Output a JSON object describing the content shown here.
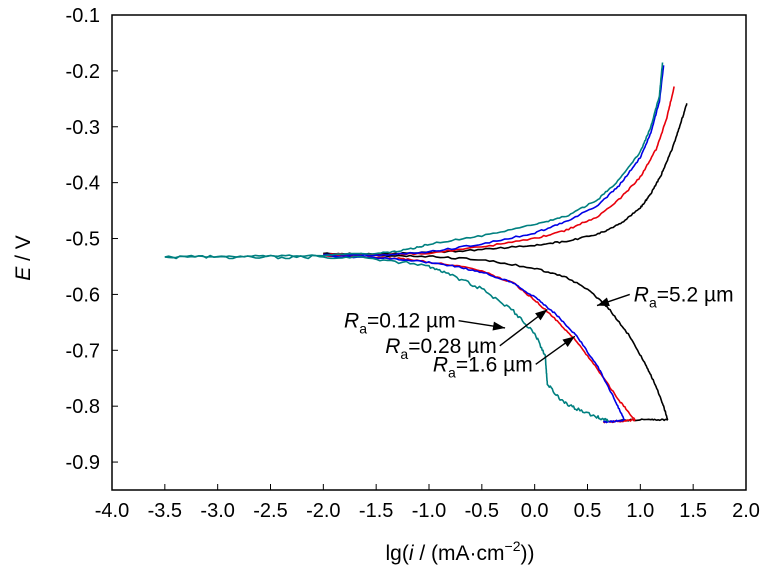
{
  "chart_data": {
    "type": "line",
    "title": "",
    "xlabel": {
      "prefix": "lg(",
      "var": "i",
      "unit_open": " / (mA·cm",
      "sup": "−2",
      "close": "))"
    },
    "ylabel": {
      "var": "E",
      "unit": " / V"
    },
    "xlim": [
      -4.0,
      2.0
    ],
    "ylim": [
      -0.95,
      -0.1
    ],
    "x_ticks": [
      -4.0,
      -3.5,
      -3.0,
      -2.5,
      -2.0,
      -1.5,
      -1.0,
      -0.5,
      0.0,
      0.5,
      1.0,
      1.5,
      2.0
    ],
    "x_tick_labels": [
      "-4.0",
      "-3.5",
      "-3.0",
      "-2.5",
      "-2.0",
      "-1.5",
      "-1.0",
      "-0.5",
      "0.0",
      "0.5",
      "1.0",
      "1.5",
      "2.0"
    ],
    "y_ticks": [
      -0.1,
      -0.2,
      -0.3,
      -0.4,
      -0.5,
      -0.6,
      -0.7,
      -0.8,
      -0.9
    ],
    "y_tick_labels": [
      "-0.1",
      "-0.2",
      "-0.3",
      "-0.4",
      "-0.5",
      "-0.6",
      "-0.7",
      "-0.8",
      "-0.9"
    ],
    "grid": false,
    "series": [
      {
        "color": "#000000",
        "anodic": [
          [
            -2.0,
            -0.527
          ],
          [
            -1.5,
            -0.528
          ],
          [
            -1.0,
            -0.525
          ],
          [
            -0.5,
            -0.52
          ],
          [
            0.0,
            -0.512
          ],
          [
            0.3,
            -0.505
          ],
          [
            0.6,
            -0.492
          ],
          [
            0.8,
            -0.475
          ],
          [
            1.0,
            -0.445
          ],
          [
            1.1,
            -0.42
          ],
          [
            1.2,
            -0.385
          ],
          [
            1.3,
            -0.34
          ],
          [
            1.38,
            -0.295
          ],
          [
            1.44,
            -0.258
          ]
        ],
        "cathodic": [
          [
            -2.0,
            -0.527
          ],
          [
            -1.5,
            -0.53
          ],
          [
            -1.0,
            -0.532
          ],
          [
            -0.5,
            -0.538
          ],
          [
            0.0,
            -0.553
          ],
          [
            0.3,
            -0.57
          ],
          [
            0.5,
            -0.59
          ],
          [
            0.7,
            -0.625
          ],
          [
            0.9,
            -0.675
          ],
          [
            1.05,
            -0.725
          ],
          [
            1.15,
            -0.765
          ],
          [
            1.22,
            -0.8
          ],
          [
            1.26,
            -0.825
          ]
        ],
        "tail": [
          [
            1.26,
            -0.825
          ],
          [
            1.1,
            -0.823
          ],
          [
            0.8,
            -0.826
          ]
        ]
      },
      {
        "color": "#e8000b",
        "anodic": [
          [
            -2.0,
            -0.528
          ],
          [
            -1.5,
            -0.53
          ],
          [
            -1.0,
            -0.526
          ],
          [
            -0.5,
            -0.515
          ],
          [
            0.0,
            -0.5
          ],
          [
            0.3,
            -0.485
          ],
          [
            0.6,
            -0.46
          ],
          [
            0.8,
            -0.43
          ],
          [
            1.0,
            -0.39
          ],
          [
            1.15,
            -0.34
          ],
          [
            1.25,
            -0.285
          ],
          [
            1.32,
            -0.228
          ]
        ],
        "cathodic": [
          [
            -2.0,
            -0.53
          ],
          [
            -1.5,
            -0.533
          ],
          [
            -1.2,
            -0.537
          ],
          [
            -0.8,
            -0.547
          ],
          [
            -0.5,
            -0.558
          ],
          [
            -0.2,
            -0.58
          ],
          [
            0.0,
            -0.61
          ],
          [
            0.2,
            -0.645
          ],
          [
            0.4,
            -0.685
          ],
          [
            0.6,
            -0.735
          ],
          [
            0.8,
            -0.79
          ],
          [
            0.95,
            -0.825
          ]
        ],
        "tail": [
          [
            0.95,
            -0.825
          ],
          [
            0.8,
            -0.827
          ],
          [
            0.65,
            -0.828
          ]
        ]
      },
      {
        "color": "#0000e6",
        "anodic": [
          [
            -2.0,
            -0.529
          ],
          [
            -1.5,
            -0.53
          ],
          [
            -1.0,
            -0.524
          ],
          [
            -0.5,
            -0.51
          ],
          [
            0.0,
            -0.49
          ],
          [
            0.3,
            -0.47
          ],
          [
            0.6,
            -0.44
          ],
          [
            0.8,
            -0.405
          ],
          [
            1.0,
            -0.355
          ],
          [
            1.1,
            -0.31
          ],
          [
            1.18,
            -0.255
          ],
          [
            1.22,
            -0.19
          ]
        ],
        "cathodic": [
          [
            -2.0,
            -0.531
          ],
          [
            -1.5,
            -0.534
          ],
          [
            -1.2,
            -0.538
          ],
          [
            -0.8,
            -0.548
          ],
          [
            -0.5,
            -0.56
          ],
          [
            -0.2,
            -0.58
          ],
          [
            0.0,
            -0.605
          ],
          [
            0.2,
            -0.635
          ],
          [
            0.4,
            -0.675
          ],
          [
            0.6,
            -0.73
          ],
          [
            0.75,
            -0.785
          ],
          [
            0.85,
            -0.825
          ]
        ],
        "tail": [
          [
            0.85,
            -0.825
          ],
          [
            0.7,
            -0.828
          ],
          [
            0.65,
            -0.828
          ]
        ]
      },
      {
        "color": "#008080",
        "anodic": [
          [
            -3.5,
            -0.533
          ],
          [
            -3.0,
            -0.532
          ],
          [
            -2.5,
            -0.531
          ],
          [
            -2.0,
            -0.53
          ],
          [
            -1.5,
            -0.527
          ],
          [
            -1.2,
            -0.52
          ],
          [
            -1.0,
            -0.51
          ],
          [
            -0.5,
            -0.495
          ],
          [
            0.0,
            -0.475
          ],
          [
            0.3,
            -0.46
          ],
          [
            0.6,
            -0.43
          ],
          [
            0.8,
            -0.395
          ],
          [
            1.0,
            -0.345
          ],
          [
            1.1,
            -0.3
          ],
          [
            1.18,
            -0.245
          ],
          [
            1.21,
            -0.185
          ]
        ],
        "cathodic": [
          [
            -3.5,
            -0.533
          ],
          [
            -3.0,
            -0.533
          ],
          [
            -2.5,
            -0.533
          ],
          [
            -2.0,
            -0.533
          ],
          [
            -1.5,
            -0.536
          ],
          [
            -1.0,
            -0.55
          ],
          [
            -0.8,
            -0.565
          ],
          [
            -0.5,
            -0.59
          ],
          [
            -0.2,
            -0.63
          ],
          [
            0.0,
            -0.67
          ],
          [
            0.1,
            -0.71
          ],
          [
            0.12,
            -0.76
          ],
          [
            0.25,
            -0.79
          ],
          [
            0.4,
            -0.805
          ],
          [
            0.6,
            -0.82
          ],
          [
            0.7,
            -0.826
          ]
        ],
        "tail": []
      }
    ],
    "annotations": [
      {
        "r": "R",
        "sub": "a",
        "text": "=0.12 µm",
        "arrow": [
          [
            -0.72,
            -0.647
          ],
          [
            -0.28,
            -0.66
          ]
        ]
      },
      {
        "r": "R",
        "sub": "a",
        "text": "=0.28 µm",
        "arrow": [
          [
            -0.33,
            -0.692
          ],
          [
            0.12,
            -0.627
          ]
        ]
      },
      {
        "r": "R",
        "sub": "a",
        "text": "=1.6 µm",
        "arrow": [
          [
            0.01,
            -0.725
          ],
          [
            0.38,
            -0.675
          ]
        ]
      },
      {
        "r": "R",
        "sub": "a",
        "text": "=5.2 µm",
        "arrow": [
          [
            0.9,
            -0.6
          ],
          [
            0.59,
            -0.62
          ]
        ]
      }
    ]
  }
}
